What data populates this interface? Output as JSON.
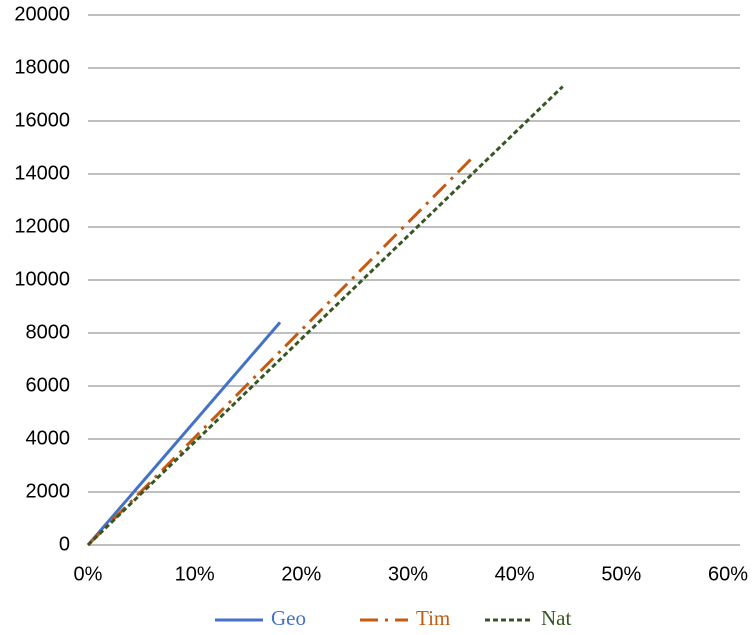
{
  "chart_data": {
    "type": "line",
    "series": [
      {
        "name": "Geo",
        "color": "#4472c4",
        "style": "solid",
        "x": [
          0,
          18
        ],
        "values": [
          0,
          8400
        ]
      },
      {
        "name": "Tim",
        "color": "#c55a11",
        "style": "dashdot",
        "x": [
          0,
          36
        ],
        "values": [
          0,
          14600
        ]
      },
      {
        "name": "Nat",
        "color": "#375623",
        "style": "dotted",
        "x": [
          0,
          44.5
        ],
        "values": [
          0,
          17300
        ]
      }
    ],
    "xlim": [
      0,
      60
    ],
    "xticks": [
      {
        "value": 0,
        "label": "0%"
      },
      {
        "value": 10,
        "label": "10%"
      },
      {
        "value": 20,
        "label": "20%"
      },
      {
        "value": 30,
        "label": "30%"
      },
      {
        "value": 40,
        "label": "40%"
      },
      {
        "value": 50,
        "label": "50%"
      },
      {
        "value": 60,
        "label": "60%"
      }
    ],
    "ylim": [
      0,
      20000
    ],
    "yticks": [
      0,
      2000,
      4000,
      6000,
      8000,
      10000,
      12000,
      14000,
      16000,
      18000,
      20000
    ],
    "grid": true,
    "legend": "bottom"
  }
}
